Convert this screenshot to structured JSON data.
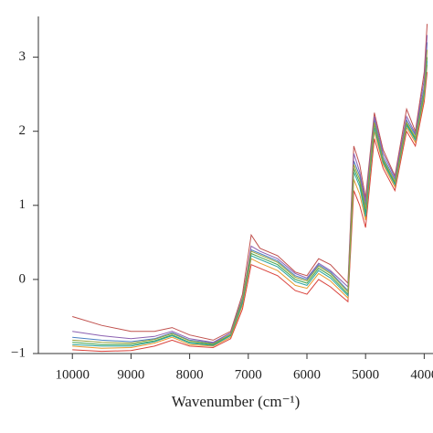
{
  "chart_data": {
    "type": "line",
    "xlabel": "Wavenumber (cm⁻¹)",
    "x": [
      10000,
      9500,
      9000,
      8600,
      8300,
      8000,
      7600,
      7300,
      7100,
      6950,
      6800,
      6500,
      6200,
      6000,
      5800,
      5600,
      5300,
      5200,
      5100,
      5000,
      4850,
      4700,
      4500,
      4300,
      4150,
      4000,
      3950
    ],
    "series": [
      {
        "color": "#3fa34d",
        "values": [
          -0.85,
          -0.88,
          -0.88,
          -0.83,
          -0.75,
          -0.85,
          -0.88,
          -0.75,
          -0.3,
          0.35,
          0.3,
          0.2,
          0.0,
          -0.05,
          0.15,
          0.05,
          -0.2,
          1.5,
          1.3,
          0.9,
          2.1,
          1.6,
          1.3,
          2.1,
          1.9,
          2.5,
          3.0
        ]
      },
      {
        "color": "#d9413a",
        "values": [
          -0.95,
          -0.97,
          -0.96,
          -0.9,
          -0.82,
          -0.9,
          -0.92,
          -0.8,
          -0.4,
          0.2,
          0.15,
          0.05,
          -0.15,
          -0.2,
          0.0,
          -0.1,
          -0.3,
          1.2,
          1.0,
          0.7,
          1.9,
          1.5,
          1.2,
          2.0,
          1.8,
          2.4,
          2.8
        ]
      },
      {
        "color": "#c0504d",
        "values": [
          -0.5,
          -0.62,
          -0.7,
          -0.7,
          -0.65,
          -0.75,
          -0.82,
          -0.7,
          -0.2,
          0.6,
          0.42,
          0.32,
          0.1,
          0.05,
          0.28,
          0.2,
          -0.05,
          1.8,
          1.55,
          1.1,
          2.25,
          1.75,
          1.4,
          2.3,
          2.0,
          2.8,
          3.45
        ]
      },
      {
        "color": "#4a7fc1",
        "values": [
          -0.78,
          -0.82,
          -0.84,
          -0.8,
          -0.72,
          -0.82,
          -0.86,
          -0.72,
          -0.25,
          0.4,
          0.35,
          0.25,
          0.05,
          0.0,
          0.2,
          0.1,
          -0.15,
          1.6,
          1.4,
          1.0,
          2.15,
          1.65,
          1.35,
          2.15,
          1.95,
          2.6,
          3.2
        ]
      },
      {
        "color": "#e89a2c",
        "values": [
          -0.9,
          -0.93,
          -0.92,
          -0.86,
          -0.78,
          -0.88,
          -0.9,
          -0.78,
          -0.35,
          0.28,
          0.22,
          0.12,
          -0.08,
          -0.12,
          0.08,
          -0.02,
          -0.25,
          1.35,
          1.15,
          0.8,
          2.0,
          1.55,
          1.25,
          2.05,
          1.85,
          2.45,
          2.9
        ]
      },
      {
        "color": "#8a5fb0",
        "values": [
          -0.7,
          -0.76,
          -0.8,
          -0.77,
          -0.7,
          -0.8,
          -0.85,
          -0.72,
          -0.28,
          0.45,
          0.38,
          0.28,
          0.08,
          0.02,
          0.22,
          0.12,
          -0.1,
          1.7,
          1.45,
          1.05,
          2.2,
          1.7,
          1.38,
          2.2,
          1.97,
          2.7,
          3.3
        ]
      },
      {
        "color": "#2aa5a0",
        "values": [
          -0.88,
          -0.9,
          -0.9,
          -0.84,
          -0.76,
          -0.86,
          -0.89,
          -0.76,
          -0.32,
          0.32,
          0.27,
          0.17,
          -0.03,
          -0.08,
          0.12,
          0.02,
          -0.22,
          1.45,
          1.25,
          0.85,
          2.05,
          1.58,
          1.28,
          2.08,
          1.88,
          2.5,
          2.95
        ]
      },
      {
        "color": "#9aa33a",
        "values": [
          -0.82,
          -0.85,
          -0.86,
          -0.81,
          -0.73,
          -0.83,
          -0.87,
          -0.74,
          -0.27,
          0.38,
          0.33,
          0.23,
          0.03,
          -0.02,
          0.18,
          0.08,
          -0.17,
          1.55,
          1.35,
          0.95,
          2.12,
          1.62,
          1.32,
          2.12,
          1.92,
          2.55,
          3.1
        ]
      }
    ],
    "xlim": [
      10580,
      3850
    ],
    "xticks": [
      10000,
      9000,
      8000,
      7000,
      6000,
      5000,
      4000
    ],
    "ylim": [
      -1,
      3.55
    ],
    "yticks": [
      {
        "value": -1,
        "label": "−1"
      },
      0,
      1,
      2,
      3
    ],
    "grid": false
  }
}
